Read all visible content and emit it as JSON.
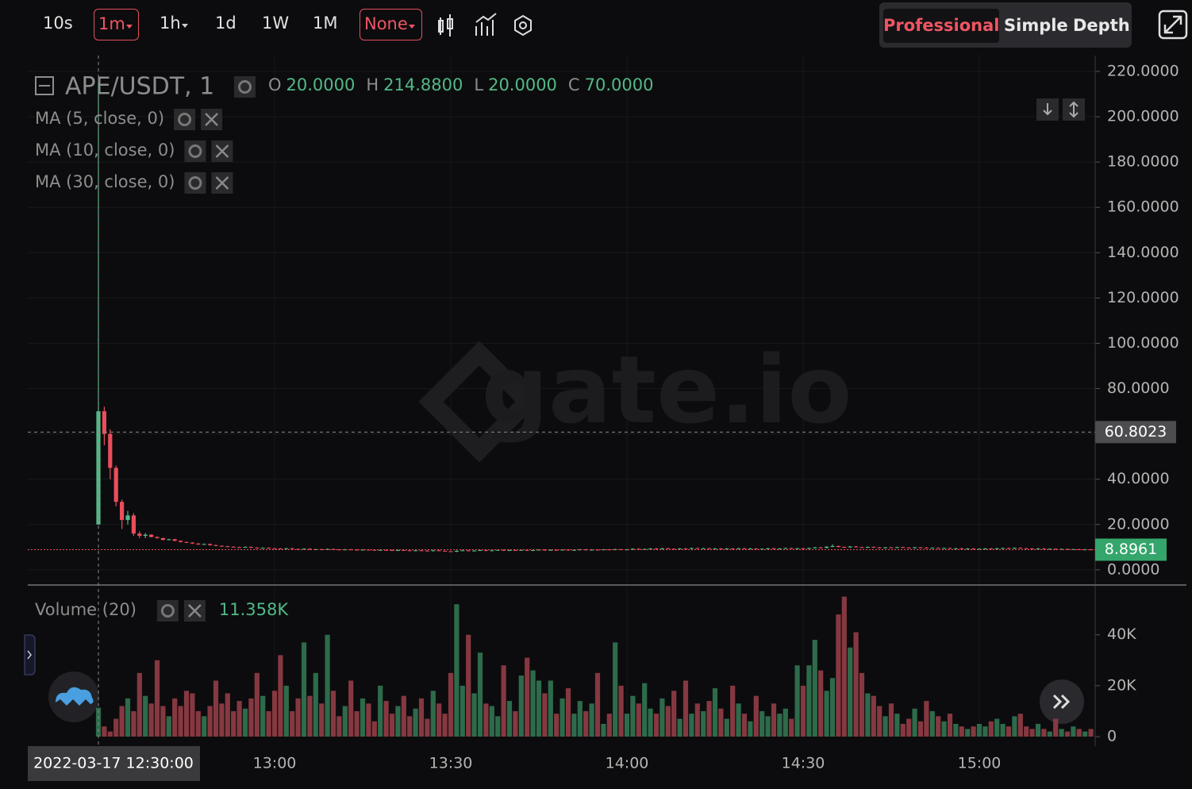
{
  "toolbar": {
    "intervals": [
      "10s",
      "1m",
      "1h",
      "1d",
      "1W",
      "1M"
    ],
    "indicator_menu": "None",
    "views": [
      "Professional",
      "Simple",
      "Depth"
    ]
  },
  "watermark": "gate.io",
  "chart_data": {
    "type": "candlestick",
    "symbol": "APE/USDT, 1",
    "ohlc_legend": [
      {
        "key": "O",
        "label": "20.0000"
      },
      {
        "key": "H",
        "label": "214.8800"
      },
      {
        "key": "L",
        "label": "20.0000"
      },
      {
        "key": "C",
        "label": "70.0000"
      }
    ],
    "indicators": [
      "MA (5, close, 0)",
      "MA (10, close, 0)",
      "MA (30, close, 0)"
    ],
    "volume_title": "Volume (20)",
    "volume_label": "11.358K",
    "crosshair_price": 60.8023,
    "up_color": "#53b987",
    "down_color": "#eb4d5c",
    "volume_up_color": "#2d6b4b",
    "volume_down_color": "#863840",
    "ylim": [
      -6,
      227
    ],
    "yticks": [
      {
        "value": 0,
        "label": "0.0000"
      },
      {
        "value": 20,
        "label": "20.0000"
      },
      {
        "value": 40,
        "label": "40.0000"
      },
      {
        "value": 60,
        "label": "60.0000"
      },
      {
        "value": 80,
        "label": "80.0000"
      },
      {
        "value": 100,
        "label": "100.0000"
      },
      {
        "value": 120,
        "label": "120.0000"
      },
      {
        "value": 140,
        "label": "140.0000"
      },
      {
        "value": 160,
        "label": "160.0000"
      },
      {
        "value": 180,
        "label": "180.0000"
      },
      {
        "value": 200,
        "label": "200.0000"
      },
      {
        "value": 220,
        "label": "220.0000"
      }
    ],
    "volume_ylim": [
      0,
      58000
    ],
    "volume_yticks": [
      0,
      {
        "value": 20000,
        "label": "20K"
      },
      {
        "value": 40000,
        "label": "40K"
      }
    ],
    "grid": true,
    "categories": [
      "2022-03-17 12:30:00",
      null,
      null,
      null,
      null,
      null,
      null,
      null,
      null,
      null,
      null,
      null,
      null,
      null,
      null,
      null,
      null,
      null,
      null,
      null,
      null,
      null,
      null,
      null,
      null,
      null,
      null,
      null,
      null,
      null,
      "13:00",
      null,
      null,
      null,
      null,
      null,
      null,
      null,
      null,
      null,
      null,
      null,
      null,
      null,
      null,
      null,
      null,
      null,
      null,
      null,
      null,
      null,
      null,
      null,
      null,
      null,
      null,
      null,
      null,
      null,
      "13:30",
      null,
      null,
      null,
      null,
      null,
      null,
      null,
      null,
      null,
      null,
      null,
      null,
      null,
      null,
      null,
      null,
      null,
      null,
      null,
      null,
      null,
      null,
      null,
      null,
      null,
      null,
      null,
      null,
      null,
      "14:00",
      null,
      null,
      null,
      null,
      null,
      null,
      null,
      null,
      null,
      null,
      null,
      null,
      null,
      null,
      null,
      null,
      null,
      null,
      null,
      null,
      null,
      null,
      null,
      null,
      null,
      null,
      null,
      null,
      null,
      "14:30",
      null,
      null,
      null,
      null,
      null,
      null,
      null,
      null,
      null,
      null,
      null,
      null,
      null,
      null,
      null,
      null,
      null,
      null,
      null,
      null,
      null,
      null,
      null,
      null,
      null,
      null,
      null,
      null,
      null,
      "15:00",
      null,
      null,
      null,
      null,
      null,
      null,
      null,
      null,
      null,
      null,
      null,
      null,
      null,
      null,
      null,
      null,
      null,
      null,
      null
    ],
    "open": [
      20,
      70,
      60,
      45,
      30,
      22,
      24,
      16,
      15,
      15.5,
      14.5,
      14,
      13.2,
      13.5,
      12.8,
      12.3,
      12,
      11.6,
      11.2,
      11.4,
      10.9,
      10.6,
      10.4,
      10.2,
      10,
      9.9,
      10.1,
      9.8,
      9.6,
      9.7,
      9.5,
      9.4,
      9.3,
      9.5,
      9.2,
      9.1,
      9.3,
      9,
      9.1,
      8.9,
      9.2,
      9,
      8.8,
      9,
      8.9,
      8.7,
      8.9,
      8.8,
      8.6,
      8.8,
      8.7,
      8.5,
      8.7,
      8.6,
      8.4,
      8.6,
      8.5,
      8.3,
      8.6,
      8.4,
      8.2,
      8,
      8.4,
      8.6,
      8.3,
      8.5,
      8.7,
      8.4,
      8.6,
      8.8,
      8.5,
      8.7,
      8.6,
      8.8,
      8.5,
      8.7,
      8.9,
      8.6,
      8.8,
      8.7,
      8.9,
      8.6,
      8.8,
      9,
      8.7,
      8.9,
      8.8,
      9,
      8.8,
      9.1,
      8.9,
      9,
      9.3,
      9.1,
      9.2,
      9.4,
      9.2,
      9.5,
      9.3,
      9.2,
      9.4,
      9.3,
      9.6,
      9.4,
      9.5,
      9.3,
      9.4,
      9.2,
      9.4,
      9.3,
      9.5,
      9.3,
      9.4,
      9.2,
      9.3,
      9.5,
      9.3,
      9.4,
      9.6,
      9.4,
      9.5,
      9.3,
      9.6,
      9.9,
      9.7,
      10.2,
      10.5,
      10.1,
      9.9,
      10.3,
      10,
      9.8,
      10.1,
      9.9,
      9.7,
      9.9,
      9.8,
      10,
      9.8,
      9.7,
      9.9,
      9.8,
      9.6,
      9.7,
      9.5,
      9.6,
      9.4,
      9.5,
      9.3,
      9.4,
      9.2,
      9.3,
      9.4,
      9.2,
      9.5,
      9.6,
      9.4,
      9.7,
      9.5,
      9.4,
      9.3,
      9.4,
      9.2,
      9.3,
      9.1,
      9.2,
      9,
      9.1,
      8.9,
      9
    ],
    "high": [
      214.88,
      72,
      62,
      46,
      31,
      26,
      25,
      17,
      16.2,
      15.7,
      14.7,
      14.2,
      13.7,
      13.7,
      13,
      12.5,
      12.2,
      11.8,
      11.6,
      11.6,
      11.1,
      10.8,
      10.6,
      10.4,
      10.2,
      10.3,
      10.3,
      10,
      9.9,
      9.9,
      9.7,
      9.6,
      9.7,
      9.7,
      9.4,
      9.5,
      9.5,
      9.3,
      9.3,
      9.4,
      9.4,
      9.2,
      9.2,
      9.2,
      9.1,
      9.1,
      9.1,
      9,
      9,
      9,
      8.9,
      8.9,
      8.9,
      8.8,
      8.8,
      8.8,
      8.7,
      8.8,
      8.8,
      8.6,
      8.4,
      8.6,
      8.8,
      8.8,
      8.7,
      8.9,
      8.9,
      8.8,
      9,
      9,
      8.9,
      8.9,
      9,
      9,
      8.9,
      9.1,
      9.1,
      9,
      9,
      9.1,
      9.1,
      9,
      9.2,
      9.2,
      9.1,
      9.1,
      9.2,
      9.2,
      9.3,
      9.3,
      9.2,
      9.5,
      9.5,
      9.4,
      9.6,
      9.6,
      9.7,
      9.7,
      9.5,
      9.6,
      9.6,
      9.8,
      9.8,
      9.7,
      9.7,
      9.6,
      9.6,
      9.6,
      9.6,
      9.7,
      9.7,
      9.6,
      9.6,
      9.5,
      9.7,
      9.7,
      9.6,
      9.8,
      9.8,
      9.7,
      9.7,
      9.8,
      10.1,
      10.1,
      10.4,
      11.2,
      10.7,
      10.3,
      10.5,
      10.5,
      10.2,
      10.3,
      10.3,
      10.1,
      10.1,
      10.1,
      10.2,
      10.2,
      10,
      10.1,
      10.1,
      10,
      9.9,
      9.9,
      9.8,
      9.8,
      9.7,
      9.7,
      9.6,
      9.6,
      9.5,
      9.6,
      9.6,
      9.7,
      9.8,
      9.8,
      9.9,
      9.9,
      9.7,
      9.6,
      9.6,
      9.6,
      9.5,
      9.5,
      9.4,
      9.4,
      9.3,
      9.3,
      9.2,
      9.2
    ],
    "low": [
      20,
      55,
      40,
      28,
      18,
      20,
      15,
      14,
      14,
      14.3,
      13.8,
      13,
      13,
      12.6,
      12.1,
      11.8,
      11.4,
      11,
      11,
      10.7,
      10.4,
      10.2,
      10,
      9.8,
      9.7,
      9.7,
      9.6,
      9.4,
      9.4,
      9.3,
      9.2,
      9.1,
      9.1,
      9,
      8.9,
      8.9,
      8.8,
      8.8,
      8.7,
      8.7,
      8.8,
      8.6,
      8.6,
      8.7,
      8.5,
      8.5,
      8.6,
      8.4,
      8.4,
      8.5,
      8.3,
      8.3,
      8.4,
      8.2,
      8.2,
      8.3,
      8.1,
      8.1,
      8.2,
      8,
      7.8,
      7.8,
      8.2,
      8.1,
      8.1,
      8.3,
      8.2,
      8.2,
      8.4,
      8.3,
      8.3,
      8.4,
      8.4,
      8.3,
      8.3,
      8.5,
      8.4,
      8.4,
      8.5,
      8.5,
      8.4,
      8.4,
      8.6,
      8.5,
      8.5,
      8.6,
      8.6,
      8.6,
      8.6,
      8.7,
      8.7,
      8.8,
      8.9,
      8.9,
      9,
      9,
      9,
      9.1,
      9,
      9,
      9.1,
      9.1,
      9.2,
      9.2,
      9.1,
      9.1,
      9,
      9,
      9.1,
      9.1,
      9.1,
      9.1,
      9,
      9,
      9.1,
      9.1,
      9.1,
      9.2,
      9.2,
      9.2,
      9.1,
      9.1,
      9.4,
      9.5,
      9.5,
      10,
      9.9,
      9.7,
      9.7,
      9.8,
      9.6,
      9.6,
      9.7,
      9.5,
      9.5,
      9.6,
      9.6,
      9.6,
      9.5,
      9.5,
      9.6,
      9.4,
      9.4,
      9.3,
      9.3,
      9.2,
      9.2,
      9.1,
      9.1,
      9,
      9,
      9.1,
      9,
      9,
      9.3,
      9.2,
      9.2,
      9.3,
      9.2,
      9.1,
      9.1,
      9,
      9,
      8.9,
      8.9,
      8.8,
      8.8,
      8.7,
      8.7,
      8.7
    ],
    "close": [
      70,
      60,
      45,
      30,
      22,
      24,
      16,
      15,
      15.5,
      14.5,
      14,
      13.2,
      13.5,
      12.8,
      12.3,
      12,
      11.6,
      11.2,
      11.4,
      10.9,
      10.6,
      10.4,
      10.2,
      10,
      9.9,
      10.1,
      9.8,
      9.6,
      9.7,
      9.5,
      9.4,
      9.3,
      9.5,
      9.2,
      9.1,
      9.3,
      9,
      9.1,
      8.9,
      9.2,
      9,
      8.8,
      9,
      8.9,
      8.7,
      8.9,
      8.8,
      8.6,
      8.8,
      8.7,
      8.5,
      8.7,
      8.6,
      8.4,
      8.6,
      8.5,
      8.3,
      8.6,
      8.4,
      8.2,
      8,
      8.4,
      8.6,
      8.3,
      8.5,
      8.7,
      8.4,
      8.6,
      8.8,
      8.5,
      8.7,
      8.6,
      8.8,
      8.5,
      8.7,
      8.9,
      8.6,
      8.8,
      8.7,
      8.9,
      8.6,
      8.8,
      9,
      8.7,
      8.9,
      8.8,
      9,
      8.8,
      9.1,
      8.9,
      9,
      9.3,
      9.1,
      9.2,
      9.4,
      9.2,
      9.5,
      9.3,
      9.2,
      9.4,
      9.3,
      9.6,
      9.4,
      9.5,
      9.3,
      9.4,
      9.2,
      9.4,
      9.3,
      9.5,
      9.3,
      9.4,
      9.2,
      9.3,
      9.5,
      9.3,
      9.4,
      9.6,
      9.4,
      9.5,
      9.3,
      9.6,
      9.9,
      9.7,
      10.2,
      10.5,
      10.1,
      9.9,
      10.3,
      10,
      9.8,
      10.1,
      9.9,
      9.7,
      9.9,
      9.8,
      10,
      9.8,
      9.7,
      9.9,
      9.8,
      9.6,
      9.7,
      9.5,
      9.6,
      9.4,
      9.5,
      9.3,
      9.4,
      9.2,
      9.3,
      9.4,
      9.2,
      9.5,
      9.6,
      9.4,
      9.7,
      9.5,
      9.4,
      9.3,
      9.4,
      9.2,
      9.3,
      9.1,
      9.2,
      9,
      9.1,
      8.9,
      9,
      8.8961
    ],
    "volume": [
      11358,
      4000,
      2000,
      7000,
      12000,
      15000,
      10000,
      25000,
      16000,
      13000,
      30000,
      12000,
      8000,
      15000,
      12000,
      18000,
      17000,
      10000,
      8000,
      12000,
      22000,
      13000,
      17000,
      10000,
      14000,
      11000,
      15000,
      25000,
      16000,
      10000,
      18000,
      32000,
      20000,
      10000,
      15000,
      37000,
      16000,
      25000,
      13000,
      40000,
      18000,
      8000,
      12000,
      22000,
      10000,
      15000,
      13000,
      6000,
      20000,
      14000,
      9000,
      12000,
      16000,
      8000,
      11000,
      15000,
      7000,
      18000,
      13000,
      9000,
      25000,
      52000,
      20000,
      40000,
      17000,
      33000,
      13000,
      12000,
      8000,
      28000,
      14000,
      10000,
      24000,
      31000,
      26000,
      22000,
      17000,
      22000,
      9000,
      15000,
      19000,
      9000,
      14000,
      10000,
      13000,
      25000,
      5000,
      9000,
      37000,
      20000,
      9000,
      16000,
      13000,
      21000,
      11000,
      9000,
      15000,
      12000,
      18000,
      7000,
      22000,
      9000,
      13000,
      10000,
      14000,
      19000,
      11000,
      7000,
      20000,
      13000,
      9000,
      6000,
      16000,
      10000,
      8000,
      13000,
      9000,
      11000,
      7000,
      28000,
      20000,
      28000,
      38000,
      26000,
      18000,
      23000,
      48000,
      55000,
      35000,
      41000,
      25000,
      17000,
      16000,
      12000,
      8000,
      13000,
      9000,
      5000,
      7000,
      11000,
      6000,
      14000,
      10000,
      8000,
      6000,
      9000,
      5000,
      4000,
      3000,
      4000,
      5000,
      4000,
      6000,
      7000,
      5000,
      4000,
      8000,
      9000,
      4000,
      3000,
      5000,
      3000,
      2000,
      7000,
      3000,
      2000,
      4000,
      3000,
      2000,
      3000
    ]
  }
}
